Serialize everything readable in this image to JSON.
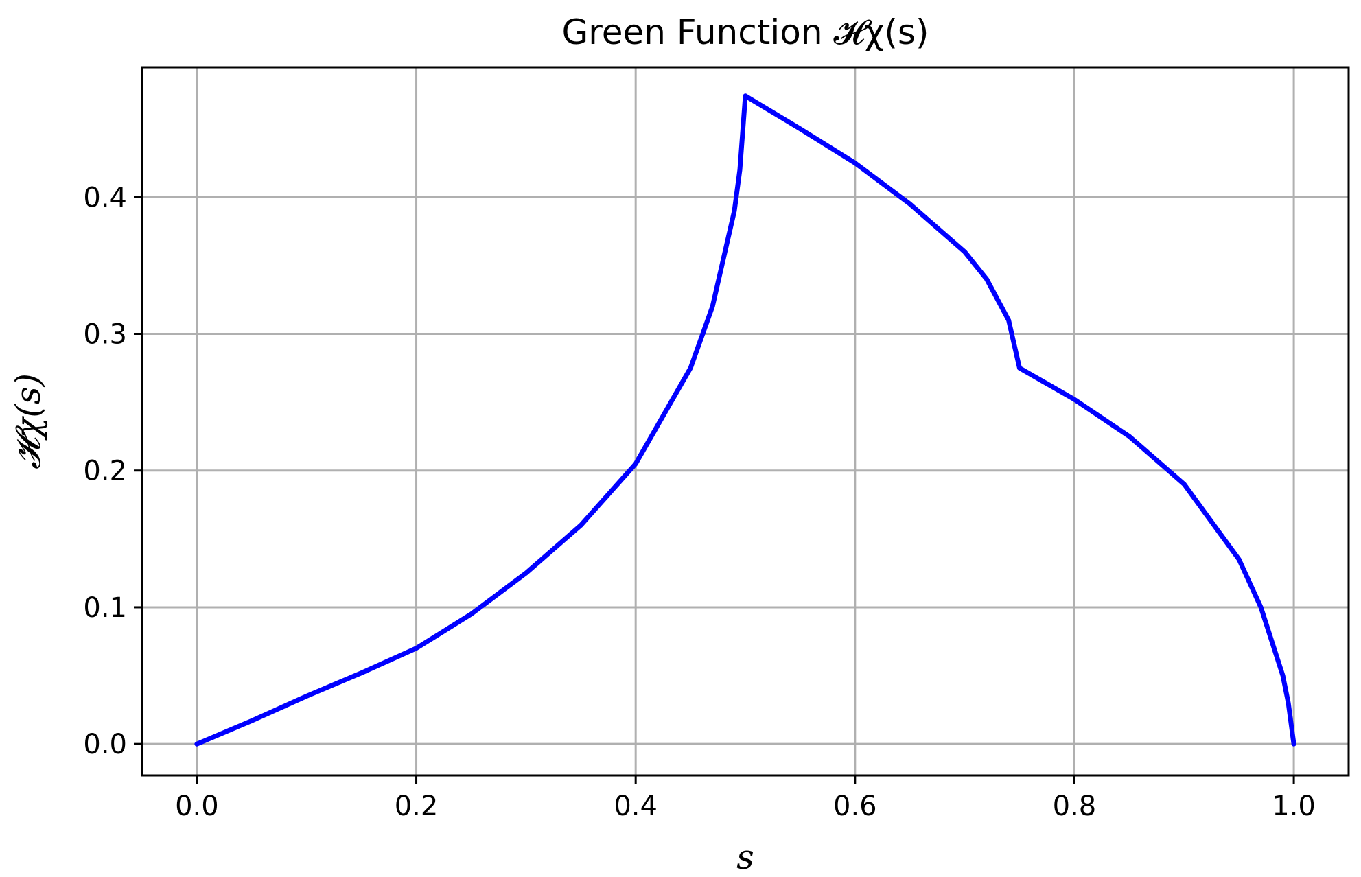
{
  "chart_data": {
    "type": "line",
    "title": "Green Function 𝓗χ(s)",
    "xlabel": "s",
    "ylabel": "𝓗χ(s)",
    "xlim": [
      -0.05,
      1.05
    ],
    "ylim": [
      -0.023,
      0.495
    ],
    "xticks": [
      0.0,
      0.2,
      0.4,
      0.6,
      0.8,
      1.0
    ],
    "xtick_labels": [
      "0.0",
      "0.2",
      "0.4",
      "0.6",
      "0.8",
      "1.0"
    ],
    "yticks": [
      0.0,
      0.1,
      0.2,
      0.3,
      0.4
    ],
    "ytick_labels": [
      "0.0",
      "0.1",
      "0.2",
      "0.3",
      "0.4"
    ],
    "grid": true,
    "series": [
      {
        "color": "#0000ff",
        "x": [
          0.0,
          0.05,
          0.1,
          0.15,
          0.2,
          0.25,
          0.3,
          0.35,
          0.4,
          0.45,
          0.47,
          0.49,
          0.495,
          0.5,
          0.55,
          0.6,
          0.65,
          0.7,
          0.72,
          0.74,
          0.75,
          0.8,
          0.85,
          0.9,
          0.95,
          0.97,
          0.99,
          0.995,
          1.0
        ],
        "y": [
          0.0,
          0.017,
          0.035,
          0.052,
          0.07,
          0.095,
          0.125,
          0.16,
          0.205,
          0.275,
          0.32,
          0.39,
          0.42,
          0.474,
          0.45,
          0.425,
          0.395,
          0.36,
          0.34,
          0.31,
          0.275,
          0.252,
          0.225,
          0.19,
          0.135,
          0.1,
          0.05,
          0.03,
          0.0
        ]
      }
    ]
  }
}
